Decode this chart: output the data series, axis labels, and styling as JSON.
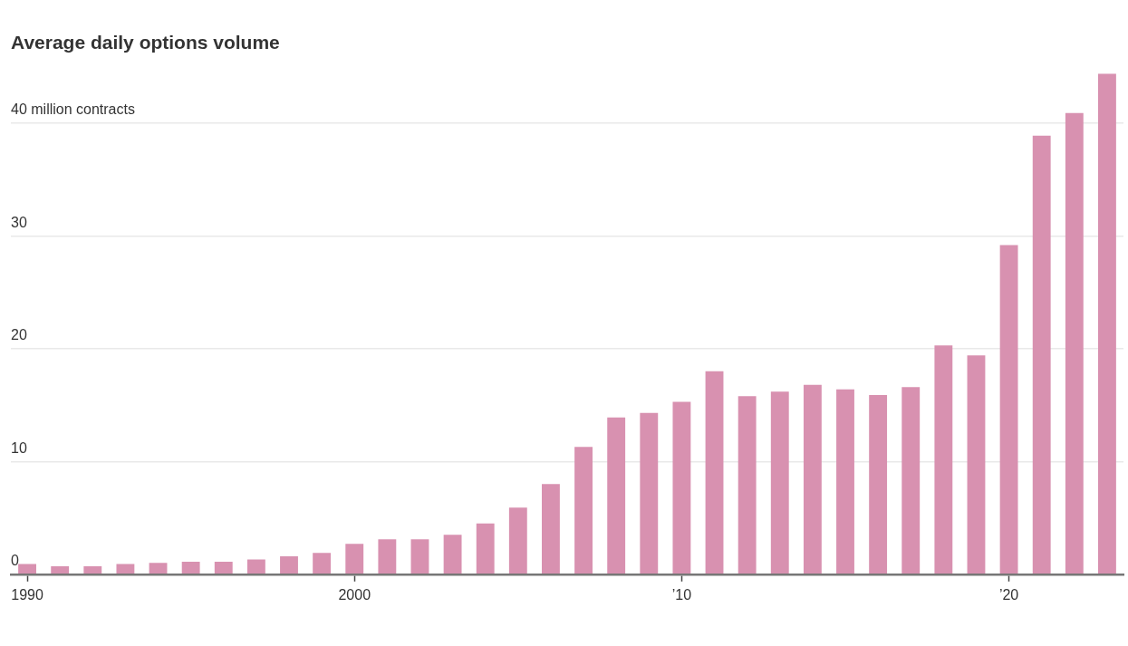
{
  "chart_data": {
    "type": "bar",
    "title": "Average daily options volume",
    "categories": [
      "1990",
      null,
      null,
      null,
      null,
      null,
      null,
      null,
      null,
      null,
      "2000",
      null,
      null,
      null,
      null,
      null,
      null,
      null,
      null,
      null,
      "’10",
      null,
      null,
      null,
      null,
      null,
      null,
      null,
      null,
      null,
      "’20",
      null,
      null,
      null
    ],
    "values": [
      0.9,
      0.7,
      0.7,
      0.9,
      1.0,
      1.1,
      1.1,
      1.3,
      1.6,
      1.9,
      2.7,
      3.1,
      3.1,
      3.5,
      4.5,
      5.9,
      8.0,
      11.3,
      13.9,
      14.3,
      15.3,
      18.0,
      15.8,
      16.2,
      16.8,
      16.4,
      15.9,
      16.6,
      20.3,
      19.4,
      29.2,
      38.9,
      40.9,
      44.4
    ],
    "color": "#d891b0",
    "ylim": [
      0,
      44.4
    ],
    "yticks": [
      0,
      10,
      20,
      30,
      {
        "value": 40,
        "label": "40 million contracts"
      }
    ],
    "grid": "y",
    "legend": false
  }
}
